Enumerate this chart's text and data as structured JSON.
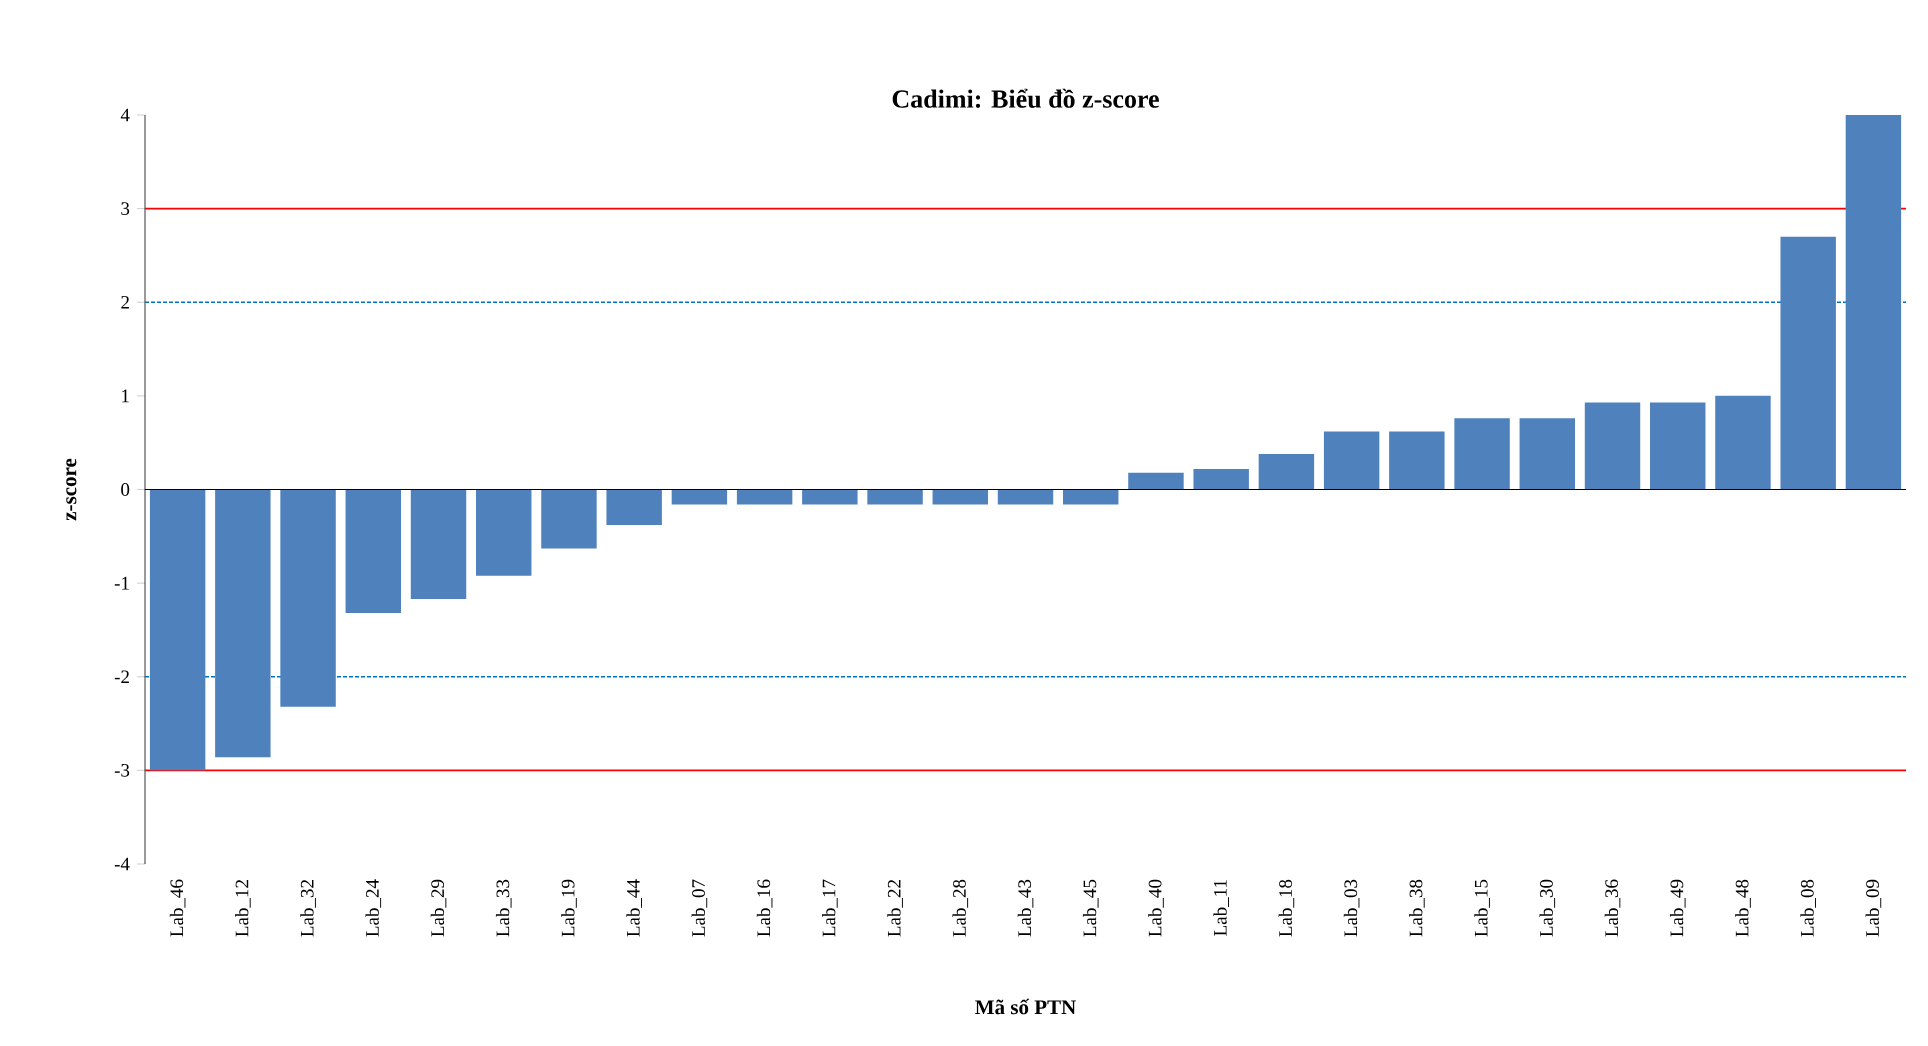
{
  "chart_data": {
    "type": "bar",
    "title": "Cadimi: Biểu đồ z-score",
    "xlabel": "Mã số PTN",
    "ylabel": "z-score",
    "categories": [
      "Lab_46",
      "Lab_12",
      "Lab_32",
      "Lab_24",
      "Lab_29",
      "Lab_33",
      "Lab_19",
      "Lab_44",
      "Lab_07",
      "Lab_16",
      "Lab_17",
      "Lab_22",
      "Lab_28",
      "Lab_43",
      "Lab_45",
      "Lab_40",
      "Lab_11",
      "Lab_18",
      "Lab_03",
      "Lab_38",
      "Lab_15",
      "Lab_30",
      "Lab_36",
      "Lab_49",
      "Lab_48",
      "Lab_08",
      "Lab_09"
    ],
    "values": [
      -3.0,
      -2.86,
      -2.32,
      -1.32,
      -1.17,
      -0.92,
      -0.63,
      -0.38,
      -0.16,
      -0.16,
      -0.16,
      -0.16,
      -0.16,
      -0.16,
      -0.16,
      0.18,
      0.22,
      0.38,
      0.62,
      0.62,
      0.76,
      0.76,
      0.93,
      0.93,
      1.0,
      2.7,
      4.0
    ],
    "color": "#4f81bd",
    "ylim": [
      -4,
      4
    ],
    "yticks": [
      -4,
      -3,
      -2,
      -1,
      0,
      1,
      2,
      3,
      4
    ],
    "ref_lines": [
      {
        "axis": "y",
        "value": 3,
        "color": "#ff0000",
        "line_style": "solid"
      },
      {
        "axis": "y",
        "value": -3,
        "color": "#ff0000",
        "line_style": "solid"
      },
      {
        "axis": "y",
        "value": 2,
        "color": "#0070c0",
        "line_style": "dashed"
      },
      {
        "axis": "y",
        "value": -2,
        "color": "#0070c0",
        "line_style": "dashed"
      }
    ]
  }
}
